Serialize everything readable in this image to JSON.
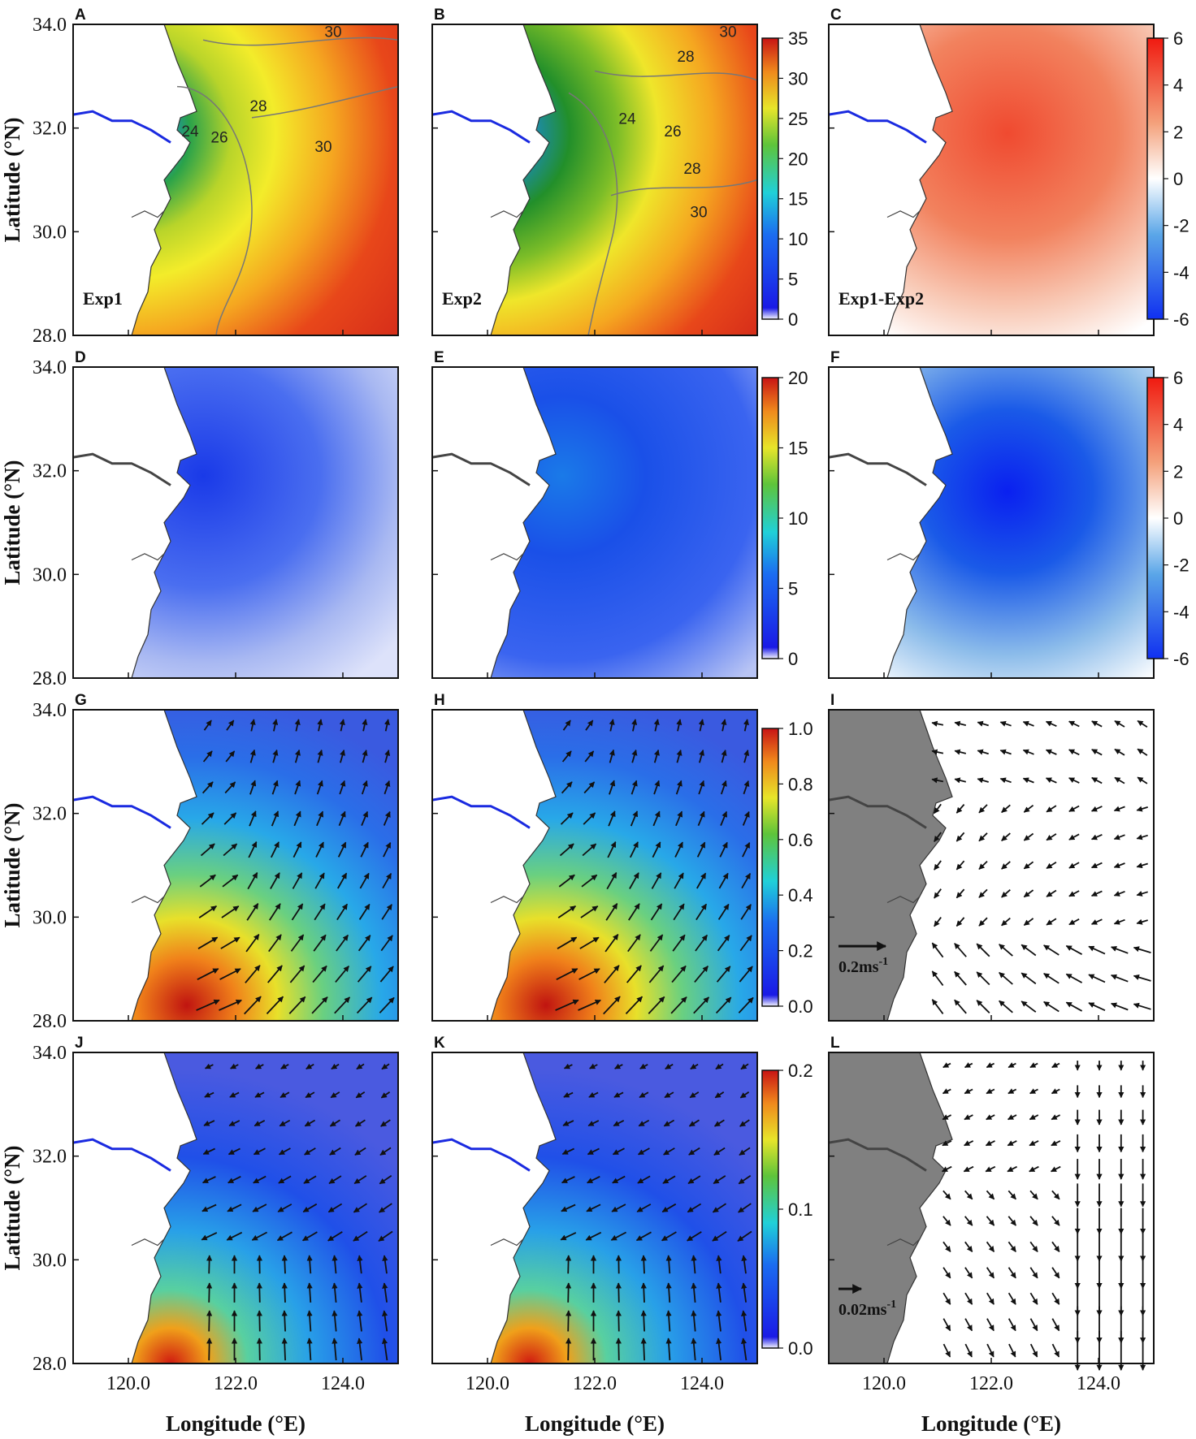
{
  "figure": {
    "panels": [
      {
        "id": "A",
        "label": "A",
        "field": "salinity",
        "experiment_label": "Exp1",
        "contour_labels": [
          "30",
          "24",
          "26",
          "28",
          "30"
        ]
      },
      {
        "id": "B",
        "label": "B",
        "field": "salinity",
        "experiment_label": "Exp2",
        "contour_labels": [
          "30",
          "28",
          "24",
          "26",
          "28",
          "30"
        ]
      },
      {
        "id": "C",
        "label": "C",
        "field": "salinity-difference",
        "experiment_label": "Exp1-Exp2",
        "contour_labels": []
      },
      {
        "id": "D",
        "label": "D",
        "field": "stratification",
        "experiment_label": "",
        "contour_labels": []
      },
      {
        "id": "E",
        "label": "E",
        "field": "stratification",
        "experiment_label": "",
        "contour_labels": []
      },
      {
        "id": "F",
        "label": "F",
        "field": "stratification-difference",
        "experiment_label": "",
        "contour_labels": []
      },
      {
        "id": "G",
        "label": "G",
        "field": "surface-current",
        "experiment_label": "",
        "contour_labels": []
      },
      {
        "id": "H",
        "label": "H",
        "field": "surface-current",
        "experiment_label": "",
        "contour_labels": []
      },
      {
        "id": "I",
        "label": "I",
        "field": "current-difference",
        "experiment_label": "",
        "scale_label": "0.2ms-1",
        "contour_labels": []
      },
      {
        "id": "J",
        "label": "J",
        "field": "bottom-current",
        "experiment_label": "",
        "contour_labels": []
      },
      {
        "id": "K",
        "label": "K",
        "field": "bottom-current",
        "experiment_label": "",
        "contour_labels": []
      },
      {
        "id": "L",
        "label": "L",
        "field": "bottom-current-difference",
        "experiment_label": "",
        "scale_label": "0.02ms-1",
        "contour_labels": []
      }
    ],
    "lat_ticks": [
      "34.0",
      "32.0",
      "30.0",
      "28.0"
    ],
    "lon_ticks": [
      "120.0",
      "122.0",
      "124.0"
    ],
    "y_axis_label": "Latitude (°N)",
    "x_axis_label": "Longitude (°E)",
    "colorbars": [
      {
        "row": 1,
        "ticks": [
          "35",
          "30",
          "25",
          "20",
          "15",
          "10",
          "5",
          "0"
        ],
        "scheme": "jet"
      },
      {
        "row": 1,
        "ticks": [
          "6",
          "4",
          "2",
          "0",
          "-2",
          "-4",
          "-6"
        ],
        "scheme": "diverging"
      },
      {
        "row": 2,
        "ticks": [
          "20",
          "15",
          "10",
          "5",
          "0"
        ],
        "scheme": "jet"
      },
      {
        "row": 2,
        "ticks": [
          "6",
          "4",
          "2",
          "0",
          "-2",
          "-4",
          "-6"
        ],
        "scheme": "diverging"
      },
      {
        "row": 3,
        "ticks": [
          "1.0",
          "0.8",
          "0.6",
          "0.4",
          "0.2",
          "0.0"
        ],
        "scheme": "jet"
      },
      {
        "row": 4,
        "ticks": [
          "0.2",
          "0.1",
          "0.0"
        ],
        "scheme": "jet"
      }
    ],
    "colors": {
      "land_gray": "#808080",
      "coast_line": "#333333",
      "jet_low": "#1010e0",
      "jet_high": "#e03010",
      "div_low": "#1030f0",
      "div_high": "#f02010"
    }
  }
}
